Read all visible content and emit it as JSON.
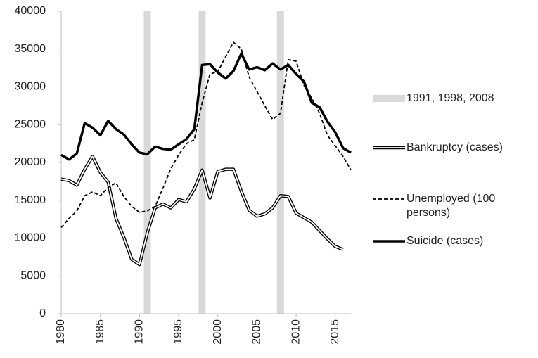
{
  "chart_data": {
    "type": "line",
    "x": [
      1980,
      1981,
      1982,
      1983,
      1984,
      1985,
      1986,
      1987,
      1988,
      1989,
      1990,
      1991,
      1992,
      1993,
      1994,
      1995,
      1996,
      1997,
      1998,
      1999,
      2000,
      2001,
      2002,
      2003,
      2004,
      2005,
      2006,
      2007,
      2008,
      2009,
      2010,
      2011,
      2012,
      2013,
      2014,
      2015,
      2016,
      2017
    ],
    "shaded_years": [
      1991,
      1998,
      2008
    ],
    "shaded_label": "1991, 1998, 2008",
    "shaded_color": "#d9d9d9",
    "series": [
      {
        "name": "Bankruptcy (cases)",
        "color": "#000000",
        "style": "double",
        "values": [
          17800,
          17600,
          17000,
          19100,
          20800,
          18700,
          17400,
          12600,
          10100,
          7200,
          6500,
          10700,
          14000,
          14500,
          14000,
          15100,
          14800,
          16500,
          19000,
          15300,
          18800,
          19100,
          19100,
          16200,
          13700,
          12900,
          13200,
          14000,
          15600,
          15500,
          13300,
          12700,
          12100,
          11000,
          9900,
          8900,
          8500,
          null
        ]
      },
      {
        "name": "Unemployed (100 persons)",
        "color": "#000000",
        "style": "dashed",
        "values": [
          11400,
          12600,
          13600,
          15600,
          16100,
          15600,
          16700,
          17300,
          15500,
          14200,
          13400,
          13600,
          14200,
          16600,
          19200,
          21000,
          22500,
          23000,
          27900,
          31700,
          32000,
          34000,
          35900,
          35000,
          31300,
          29400,
          27500,
          25700,
          26500,
          33600,
          33400,
          30200,
          28500,
          26500,
          23600,
          22200,
          20800,
          19000
        ]
      },
      {
        "name": "Suicide (cases)",
        "color": "#000000",
        "style": "thick",
        "values": [
          21000,
          20400,
          21200,
          25200,
          24600,
          23600,
          25500,
          24400,
          23700,
          22400,
          21300,
          21100,
          22100,
          21800,
          21700,
          22400,
          23100,
          24400,
          32900,
          33000,
          31900,
          31100,
          32100,
          34400,
          32300,
          32600,
          32200,
          33100,
          32300,
          32900,
          31700,
          30700,
          27900,
          27300,
          25400,
          24000,
          21900,
          21300
        ]
      }
    ],
    "xlim": [
      1980,
      2017
    ],
    "xticks": [
      1980,
      1985,
      1990,
      1995,
      2000,
      2005,
      2010,
      2015
    ],
    "ylim": [
      0,
      40000
    ],
    "yticks": [
      0,
      5000,
      10000,
      15000,
      20000,
      25000,
      30000,
      35000,
      40000
    ]
  }
}
